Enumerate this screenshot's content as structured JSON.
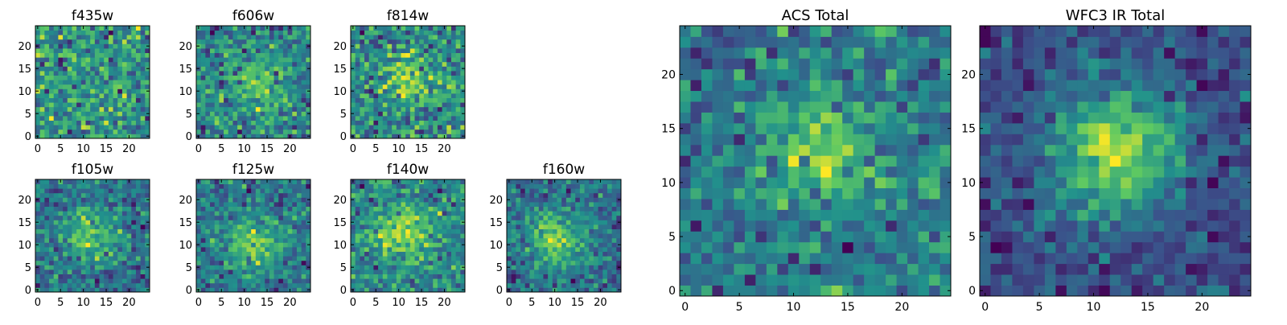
{
  "chart_data": [
    {
      "type": "heatmap",
      "title": "f435w",
      "grid_size": 25,
      "xlim": [
        -0.5,
        24.5
      ],
      "ylim": [
        -0.5,
        24.5
      ],
      "xticks": [
        0,
        5,
        10,
        15,
        20
      ],
      "yticks": [
        0,
        5,
        10,
        15,
        20
      ],
      "seed": 11,
      "peak_center": [
        13,
        12
      ],
      "peak_amplitude": 0.1,
      "noise": 1.0
    },
    {
      "type": "heatmap",
      "title": "f606w",
      "grid_size": 25,
      "xlim": [
        -0.5,
        24.5
      ],
      "ylim": [
        -0.5,
        24.5
      ],
      "xticks": [
        0,
        5,
        10,
        15,
        20
      ],
      "yticks": [
        0,
        5,
        10,
        15,
        20
      ],
      "seed": 23,
      "peak_center": [
        13,
        12
      ],
      "peak_amplitude": 0.9,
      "noise": 1.0
    },
    {
      "type": "heatmap",
      "title": "f814w",
      "grid_size": 25,
      "xlim": [
        -0.5,
        24.5
      ],
      "ylim": [
        -0.5,
        24.5
      ],
      "xticks": [
        0,
        5,
        10,
        15,
        20
      ],
      "yticks": [
        0,
        5,
        10,
        15,
        20
      ],
      "seed": 37,
      "peak_center": [
        13,
        13
      ],
      "peak_amplitude": 0.8,
      "noise": 1.0
    },
    {
      "type": "heatmap",
      "title": "f105w",
      "grid_size": 25,
      "xlim": [
        -0.5,
        24.5
      ],
      "ylim": [
        -0.5,
        24.5
      ],
      "xticks": [
        0,
        5,
        10,
        15,
        20
      ],
      "yticks": [
        0,
        5,
        10,
        15,
        20
      ],
      "seed": 41,
      "peak_center": [
        12,
        12
      ],
      "peak_amplitude": 1.2,
      "noise": 0.9
    },
    {
      "type": "heatmap",
      "title": "f125w",
      "grid_size": 25,
      "xlim": [
        -0.5,
        24.5
      ],
      "ylim": [
        -0.5,
        24.5
      ],
      "xticks": [
        0,
        5,
        10,
        15,
        20
      ],
      "yticks": [
        0,
        5,
        10,
        15,
        20
      ],
      "seed": 53,
      "peak_center": [
        12,
        10
      ],
      "peak_amplitude": 1.2,
      "noise": 0.9
    },
    {
      "type": "heatmap",
      "title": "f140w",
      "grid_size": 25,
      "xlim": [
        -0.5,
        24.5
      ],
      "ylim": [
        -0.5,
        24.5
      ],
      "xticks": [
        0,
        5,
        10,
        15,
        20
      ],
      "yticks": [
        0,
        5,
        10,
        15,
        20
      ],
      "seed": 67,
      "peak_center": [
        11,
        13
      ],
      "peak_amplitude": 1.2,
      "noise": 0.9
    },
    {
      "type": "heatmap",
      "title": "f160w",
      "grid_size": 25,
      "xlim": [
        -0.5,
        24.5
      ],
      "ylim": [
        -0.5,
        24.5
      ],
      "xticks": [
        0,
        5,
        10,
        15,
        20
      ],
      "yticks": [
        0,
        5,
        10,
        15,
        20
      ],
      "seed": 79,
      "peak_center": [
        10,
        11
      ],
      "peak_amplitude": 1.5,
      "noise": 0.8
    },
    {
      "type": "heatmap",
      "title": "ACS Total",
      "grid_size": 25,
      "xlim": [
        -0.5,
        24.5
      ],
      "ylim": [
        -0.5,
        24.5
      ],
      "xticks": [
        0,
        5,
        10,
        15,
        20
      ],
      "yticks": [
        0,
        5,
        10,
        15,
        20
      ],
      "seed": 97,
      "peak_center": [
        13,
        13
      ],
      "peak_amplitude": 1.1,
      "noise": 0.9
    },
    {
      "type": "heatmap",
      "title": "WFC3 IR Total",
      "grid_size": 25,
      "xlim": [
        -0.5,
        24.5
      ],
      "ylim": [
        -0.5,
        24.5
      ],
      "xticks": [
        0,
        5,
        10,
        15,
        20
      ],
      "yticks": [
        0,
        5,
        10,
        15,
        20
      ],
      "seed": 101,
      "peak_center": [
        12,
        13
      ],
      "peak_amplitude": 2.0,
      "noise": 0.6
    }
  ],
  "colormap": [
    "#440154",
    "#3b528b",
    "#21918c",
    "#5ec962",
    "#fde725"
  ]
}
